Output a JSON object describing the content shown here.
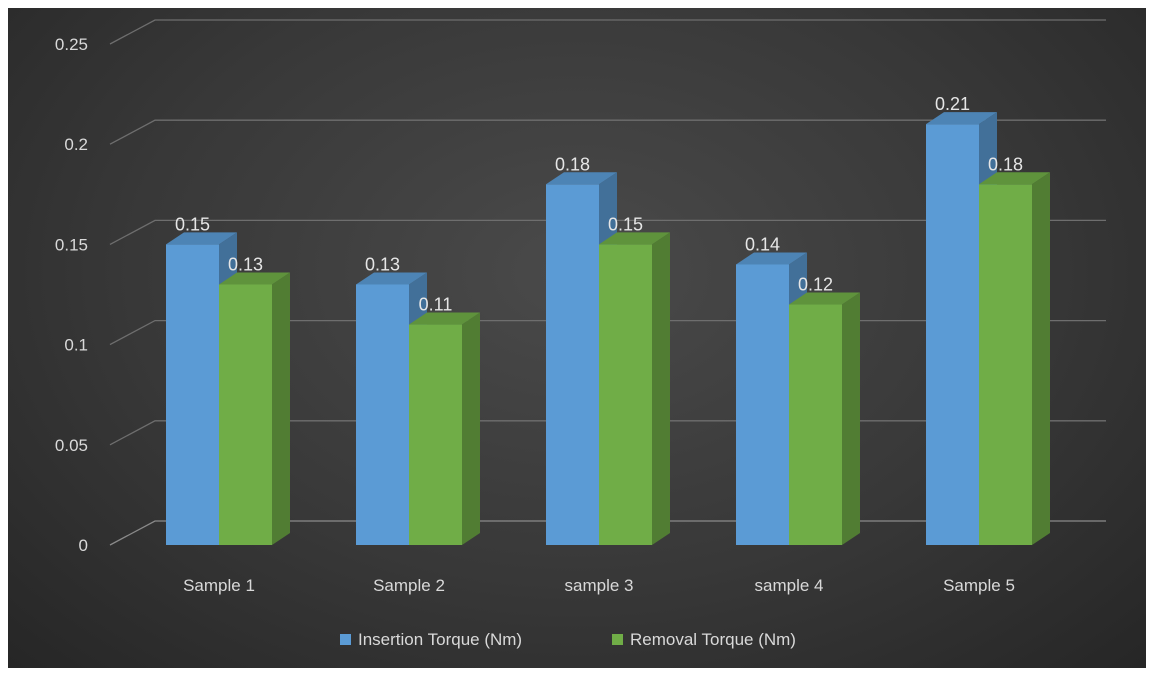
{
  "chart_data": {
    "type": "bar",
    "style": "3d-clustered-column",
    "categories": [
      "Sample 1",
      "Sample 2",
      "sample 3",
      "sample 4",
      "Sample 5"
    ],
    "series": [
      {
        "name": "Insertion Torque (Nm)",
        "values": [
          0.15,
          0.13,
          0.18,
          0.14,
          0.21
        ],
        "color": "#5b9bd5"
      },
      {
        "name": "Removal Torque (Nm)",
        "values": [
          0.13,
          0.11,
          0.15,
          0.12,
          0.18
        ],
        "color": "#70ad47"
      }
    ],
    "yticks": [
      "0",
      "0.05",
      "0.1",
      "0.15",
      "0.2",
      "0.25"
    ],
    "ylim": [
      0,
      0.25
    ],
    "title": "",
    "xlabel": "",
    "ylabel": "",
    "grid": true,
    "legend_position": "bottom",
    "background": "#3a3a3a"
  }
}
